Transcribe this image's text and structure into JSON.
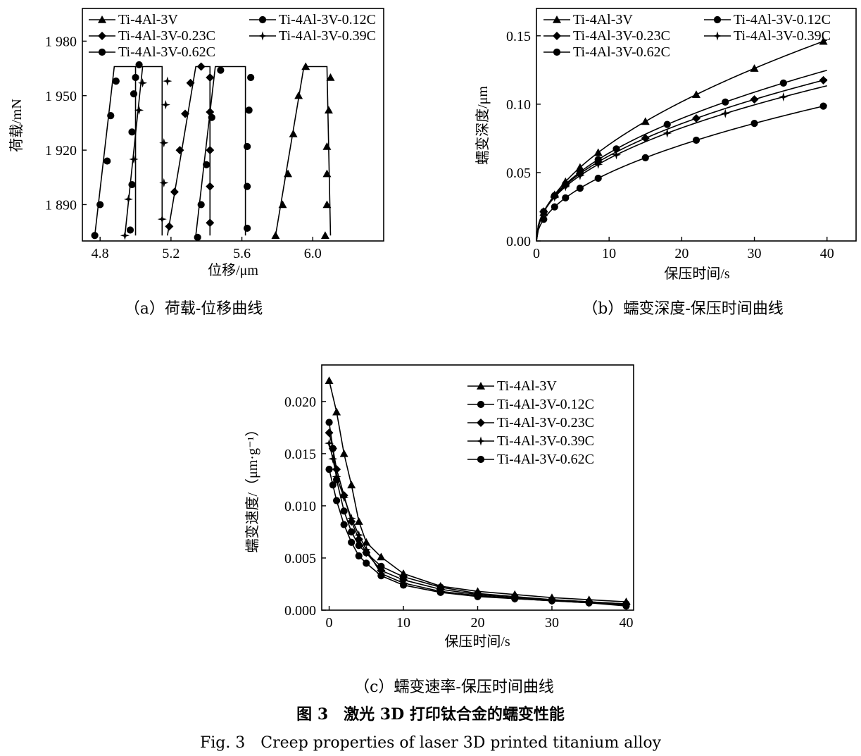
{
  "figure": {
    "title_cn": "图 3　激光 3D 打印钛合金的蠕变性能",
    "title_en": "Fig. 3　Creep properties of laser 3D printed titanium alloy"
  },
  "chart_data": [
    {
      "id": "a",
      "type": "line",
      "caption": "（a）荷载-位移曲线",
      "xlabel": "位移/μm",
      "ylabel": "荷载/mN",
      "xlim": [
        4.7,
        6.4
      ],
      "ylim": [
        1870,
        1998
      ],
      "xticks": [
        4.8,
        5.2,
        5.6,
        6.0
      ],
      "xtick_labels": [
        "4.8",
        "5.2",
        "5.6",
        "6.0"
      ],
      "yticks": [
        1890,
        1920,
        1950,
        1980
      ],
      "ytick_labels": [
        "1 890",
        "1 920",
        "1 950",
        "1 980"
      ],
      "legend_layout": "two-column top",
      "series": [
        {
          "name": "Ti-4Al-3V",
          "marker": "triangle",
          "line": [
            [
              5.79,
              1873
            ],
            [
              5.95,
              1966
            ],
            [
              6.08,
              1966
            ],
            [
              6.1,
              1873
            ]
          ],
          "markers": [
            [
              5.79,
              1873
            ],
            [
              5.83,
              1890
            ],
            [
              5.86,
              1907
            ],
            [
              5.89,
              1929
            ],
            [
              5.92,
              1950
            ],
            [
              5.96,
              1966
            ],
            [
              6.07,
              1873
            ],
            [
              6.08,
              1890
            ],
            [
              6.08,
              1907
            ],
            [
              6.08,
              1922
            ],
            [
              6.09,
              1942
            ],
            [
              6.1,
              1960
            ]
          ]
        },
        {
          "name": "Ti-4Al-3V-0.12C",
          "marker": "circle",
          "line": [
            [
              4.77,
              1873
            ],
            [
              4.88,
              1966
            ],
            [
              5.0,
              1966
            ],
            [
              5.0,
              1873
            ]
          ],
          "markers": [
            [
              4.77,
              1873
            ],
            [
              4.8,
              1890
            ],
            [
              4.84,
              1914
            ],
            [
              4.86,
              1939
            ],
            [
              4.89,
              1958
            ],
            [
              5.02,
              1967
            ],
            [
              4.97,
              1876
            ],
            [
              4.98,
              1901
            ],
            [
              4.98,
              1930
            ],
            [
              4.99,
              1951
            ],
            [
              5.0,
              1960
            ]
          ]
        },
        {
          "name": "Ti-4Al-3V-0.23C",
          "marker": "diamond",
          "line": [
            [
              5.18,
              1873
            ],
            [
              5.34,
              1966
            ],
            [
              5.42,
              1966
            ],
            [
              5.42,
              1873
            ]
          ],
          "markers": [
            [
              5.19,
              1878
            ],
            [
              5.22,
              1897
            ],
            [
              5.25,
              1920
            ],
            [
              5.28,
              1940
            ],
            [
              5.31,
              1957
            ],
            [
              5.37,
              1966
            ],
            [
              5.42,
              1880
            ],
            [
              5.42,
              1900
            ],
            [
              5.42,
              1920
            ],
            [
              5.42,
              1941
            ],
            [
              5.42,
              1960
            ]
          ]
        },
        {
          "name": "Ti-4Al-3V-0.39C",
          "marker": "star",
          "line": [
            [
              4.94,
              1873
            ],
            [
              5.04,
              1966
            ],
            [
              5.15,
              1966
            ],
            [
              5.15,
              1873
            ]
          ],
          "markers": [
            [
              4.94,
              1873
            ],
            [
              4.96,
              1893
            ],
            [
              4.99,
              1915
            ],
            [
              5.02,
              1942
            ],
            [
              5.04,
              1957
            ],
            [
              5.15,
              1882
            ],
            [
              5.16,
              1902
            ],
            [
              5.16,
              1924
            ],
            [
              5.17,
              1945
            ],
            [
              5.18,
              1958
            ]
          ]
        },
        {
          "name": "Ti-4Al-3V-0.62C",
          "marker": "circle",
          "line": [
            [
              5.34,
              1873
            ],
            [
              5.45,
              1966
            ],
            [
              5.62,
              1966
            ],
            [
              5.62,
              1873
            ]
          ],
          "markers": [
            [
              5.35,
              1872
            ],
            [
              5.37,
              1890
            ],
            [
              5.4,
              1912
            ],
            [
              5.43,
              1938
            ],
            [
              5.48,
              1964
            ],
            [
              5.63,
              1877
            ],
            [
              5.63,
              1900
            ],
            [
              5.63,
              1922
            ],
            [
              5.64,
              1942
            ],
            [
              5.65,
              1960
            ]
          ]
        }
      ]
    },
    {
      "id": "b",
      "type": "line",
      "caption": "（b）蠕变深度-保压时间曲线",
      "xlabel": "保压时间/s",
      "ylabel": "蠕变深度/μm",
      "xlim": [
        0,
        44
      ],
      "ylim": [
        0,
        0.17
      ],
      "xticks": [
        0,
        10,
        20,
        30,
        40
      ],
      "xtick_labels": [
        "0",
        "10",
        "20",
        "30",
        "40"
      ],
      "yticks": [
        0,
        0.05,
        0.1,
        0.15
      ],
      "ytick_labels": [
        "0.00",
        "0.05",
        "0.10",
        "0.15"
      ],
      "legend_layout": "two-column top",
      "series": [
        {
          "name": "Ti-4Al-3V",
          "marker": "triangle",
          "coef": 0.0208,
          "exp": 0.53
        },
        {
          "name": "Ti-4Al-3V-0.12C",
          "marker": "circle",
          "coef": 0.0214,
          "exp": 0.478
        },
        {
          "name": "Ti-4Al-3V-0.23C",
          "marker": "diamond",
          "coef": 0.0215,
          "exp": 0.462
        },
        {
          "name": "Ti-4Al-3V-0.39C",
          "marker": "star",
          "coef": 0.0211,
          "exp": 0.456
        },
        {
          "name": "Ti-4Al-3V-0.62C",
          "marker": "circle",
          "coef": 0.0158,
          "exp": 0.498
        }
      ]
    },
    {
      "id": "c",
      "type": "line",
      "caption": "（c）蠕变速率-保压时间曲线",
      "xlabel": "保压时间/s",
      "ylabel": "蠕变速度/（μm·g⁻¹）",
      "xlim": [
        -1,
        41
      ],
      "ylim": [
        0,
        0.0235
      ],
      "xticks": [
        0,
        10,
        20,
        30,
        40
      ],
      "xtick_labels": [
        "0",
        "10",
        "20",
        "30",
        "40"
      ],
      "yticks": [
        0,
        0.005,
        0.01,
        0.015,
        0.02
      ],
      "ytick_labels": [
        "0.000",
        "0.005",
        "0.010",
        "0.015",
        "0.020"
      ],
      "legend_layout": "single-column top-right",
      "series": [
        {
          "name": "Ti-4Al-3V",
          "marker": "triangle",
          "values": [
            [
              0,
              0.022
            ],
            [
              1,
              0.019
            ],
            [
              2,
              0.015
            ],
            [
              3,
              0.012
            ],
            [
              4,
              0.0085
            ],
            [
              5,
              0.0065
            ],
            [
              7,
              0.0051
            ],
            [
              10,
              0.0035
            ],
            [
              15,
              0.0023
            ],
            [
              20,
              0.0018
            ],
            [
              25,
              0.0015
            ],
            [
              30,
              0.0012
            ],
            [
              35,
              0.001
            ],
            [
              40,
              0.0008
            ]
          ]
        },
        {
          "name": "Ti-4Al-3V-0.12C",
          "marker": "circle",
          "values": [
            [
              0,
              0.018
            ],
            [
              0.5,
              0.0155
            ],
            [
              1,
              0.0125
            ],
            [
              2,
              0.0095
            ],
            [
              3,
              0.0075
            ],
            [
              4,
              0.0062
            ],
            [
              5,
              0.0055
            ],
            [
              7,
              0.0042
            ],
            [
              10,
              0.0032
            ],
            [
              15,
              0.0022
            ],
            [
              20,
              0.0016
            ],
            [
              25,
              0.0013
            ],
            [
              30,
              0.001
            ],
            [
              35,
              0.0008
            ],
            [
              40,
              0.0006
            ]
          ]
        },
        {
          "name": "Ti-4Al-3V-0.23C",
          "marker": "diamond",
          "values": [
            [
              0,
              0.017
            ],
            [
              0.5,
              0.0155
            ],
            [
              1,
              0.0135
            ],
            [
              2,
              0.011
            ],
            [
              3,
              0.0085
            ],
            [
              4,
              0.0068
            ],
            [
              5,
              0.0055
            ],
            [
              7,
              0.0038
            ],
            [
              10,
              0.0029
            ],
            [
              15,
              0.002
            ],
            [
              20,
              0.0015
            ],
            [
              25,
              0.0012
            ],
            [
              30,
              0.001
            ],
            [
              35,
              0.0008
            ],
            [
              40,
              0.0006
            ]
          ]
        },
        {
          "name": "Ti-4Al-3V-0.39C",
          "marker": "star",
          "values": [
            [
              0,
              0.016
            ],
            [
              0.5,
              0.0145
            ],
            [
              1,
              0.0128
            ],
            [
              2,
              0.0108
            ],
            [
              3,
              0.0088
            ],
            [
              4,
              0.0072
            ],
            [
              5,
              0.0058
            ],
            [
              7,
              0.0035
            ],
            [
              10,
              0.0026
            ],
            [
              15,
              0.0018
            ],
            [
              20,
              0.0014
            ],
            [
              25,
              0.0011
            ],
            [
              30,
              0.0009
            ],
            [
              35,
              0.0007
            ],
            [
              40,
              0.0005
            ]
          ]
        },
        {
          "name": "Ti-4Al-3V-0.62C",
          "marker": "circle",
          "values": [
            [
              0,
              0.0135
            ],
            [
              0.5,
              0.012
            ],
            [
              1,
              0.0105
            ],
            [
              2,
              0.0082
            ],
            [
              3,
              0.0065
            ],
            [
              4,
              0.0052
            ],
            [
              5,
              0.0045
            ],
            [
              7,
              0.0033
            ],
            [
              10,
              0.0024
            ],
            [
              15,
              0.0017
            ],
            [
              20,
              0.0013
            ],
            [
              25,
              0.0011
            ],
            [
              30,
              0.0009
            ],
            [
              35,
              0.0007
            ],
            [
              40,
              0.0004
            ]
          ]
        }
      ]
    }
  ]
}
